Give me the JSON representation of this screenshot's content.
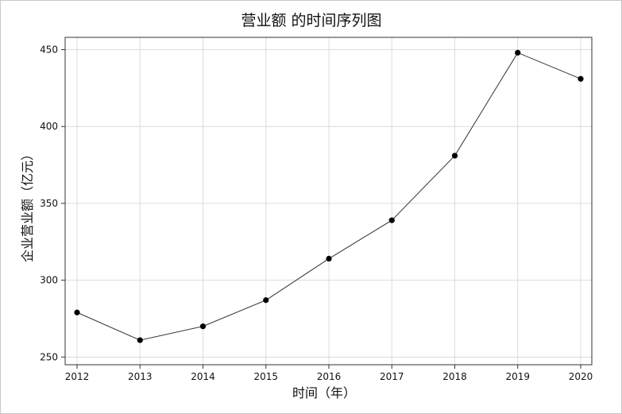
{
  "chart_data": {
    "type": "line",
    "title": "营业额 的时间序列图",
    "xlabel": "时间（年）",
    "ylabel": "企业营业额（亿元）",
    "x": [
      "2012",
      "2013",
      "2014",
      "2015",
      "2016",
      "2017",
      "2018",
      "2019",
      "2020"
    ],
    "series": [
      {
        "values": [
          279,
          261,
          270,
          287,
          314,
          339,
          381,
          448,
          431
        ]
      }
    ],
    "ylim": [
      245,
      458
    ],
    "yticks": [
      250,
      300,
      350,
      400,
      450
    ],
    "grid": true,
    "colors": {
      "line": "#333333",
      "marker": "#000000",
      "grid": "#dcdcdc",
      "axis": "#333333"
    }
  }
}
